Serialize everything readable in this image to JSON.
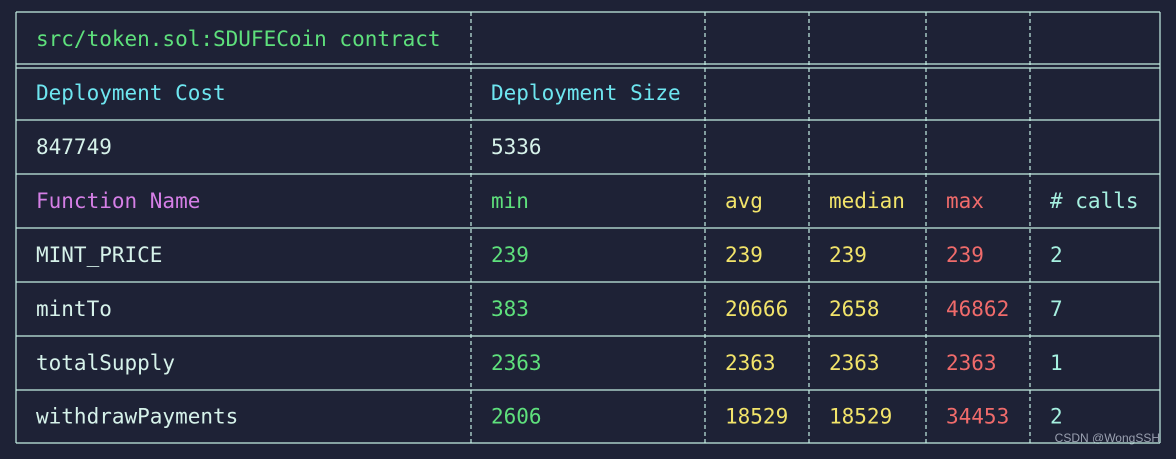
{
  "header": {
    "title": "src/token.sol:SDUFECoin contract"
  },
  "deployment": {
    "headers": [
      "Deployment Cost",
      "Deployment Size"
    ],
    "values": [
      847749,
      5336
    ]
  },
  "table": {
    "columns": [
      "Function Name",
      "min",
      "avg",
      "median",
      "max",
      "# calls"
    ],
    "rows": [
      [
        "MINT_PRICE",
        239,
        239,
        239,
        239,
        2
      ],
      [
        "mintTo",
        383,
        20666,
        2658,
        46862,
        7
      ],
      [
        "totalSupply",
        2363,
        2363,
        2363,
        2363,
        1
      ],
      [
        "withdrawPayments",
        2606,
        18529,
        18529,
        34453,
        2
      ]
    ]
  },
  "watermark": "CSDN @WongSSH"
}
